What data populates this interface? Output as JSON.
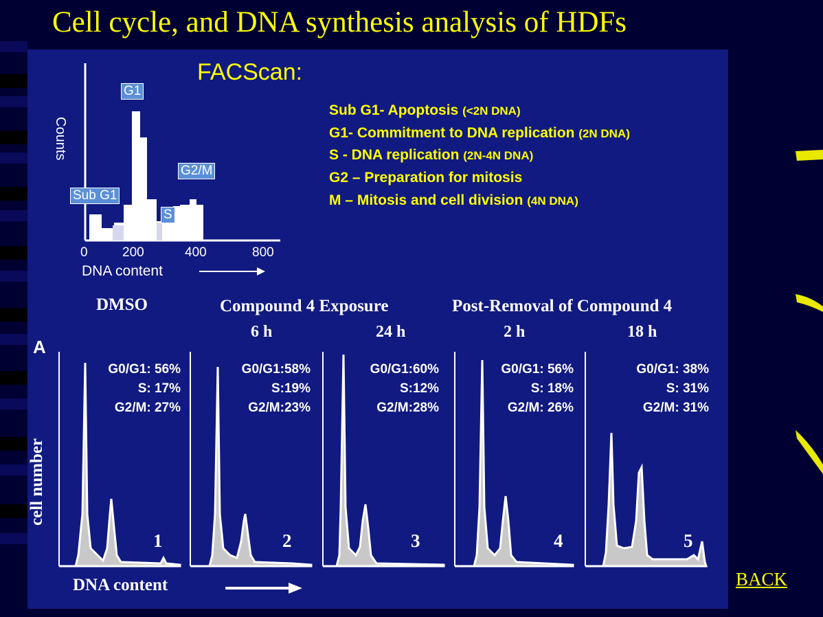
{
  "slide": {
    "title": "Cell cycle, and DNA synthesis analysis of HDFs",
    "back_link": "BACK"
  },
  "facscan": {
    "title": "FACScan:",
    "y_label": "Counts",
    "x_label": "DNA content",
    "x_ticks": [
      "0",
      "200",
      "400",
      "800"
    ],
    "peak_tags": [
      "G1",
      "G2/M",
      "Sub G1",
      "S"
    ],
    "legend": [
      {
        "text": "Sub G1- Apoptosis",
        "note": "(<2N DNA)"
      },
      {
        "text": "G1- Commitment to DNA  replication",
        "note": "(2N DNA)"
      },
      {
        "text": "S - DNA replication",
        "note": "(2N-4N DNA)"
      },
      {
        "text": "G2 – Preparation for mitosis",
        "note": ""
      },
      {
        "text": "M – Mitosis and cell division",
        "note": "(4N DNA)"
      }
    ]
  },
  "experiment": {
    "panel_label": "A",
    "y_label": "cell number",
    "x_label": "DNA content",
    "group_dmso": "DMSO",
    "group_exposure": "Compound 4 Exposure",
    "group_removal": "Post-Removal of Compound 4",
    "panels": [
      {
        "time": "",
        "number": "1",
        "g0g1": "G0/G1: 56%",
        "s": "S: 17%",
        "g2m": "G2/M: 27%"
      },
      {
        "time": "6 h",
        "number": "2",
        "g0g1": "G0/G1:58%",
        "s": "S:19%",
        "g2m": "G2/M:23%"
      },
      {
        "time": "24 h",
        "number": "3",
        "g0g1": "G0/G1:60%",
        "s": "S:12%",
        "g2m": "G2/M:28%"
      },
      {
        "time": "2 h",
        "number": "4",
        "g0g1": "G0/G1: 56%",
        "s": "S: 18%",
        "g2m": "G2/M: 26%"
      },
      {
        "time": "18 h",
        "number": "5",
        "g0g1": "G0/G1: 38%",
        "s": "S: 31%",
        "g2m": "G2/M: 31%"
      }
    ]
  },
  "colors": {
    "background": "#000033",
    "panel": "#111a80",
    "title": "#ffff00",
    "tag_fill": "#5b90d6",
    "histogram_fill": "#c8c8c8"
  }
}
